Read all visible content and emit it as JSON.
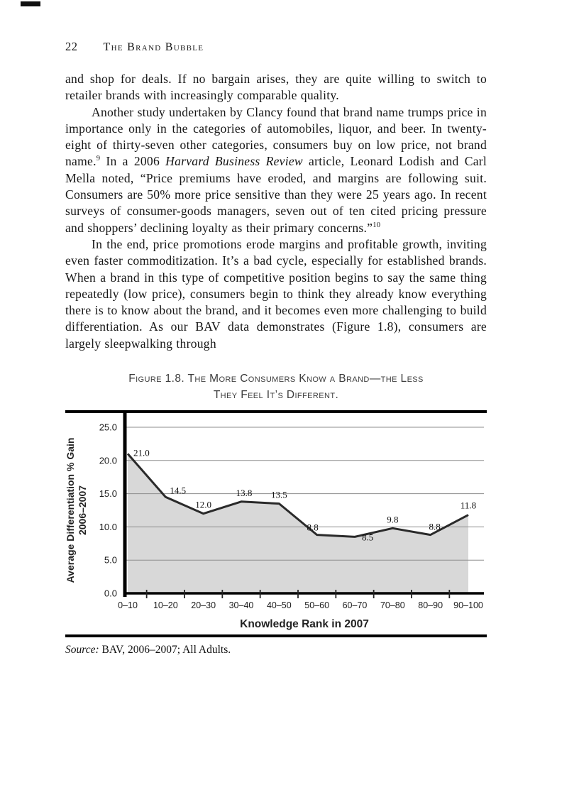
{
  "header": {
    "page_number": "22",
    "running_head": "The Brand Bubble"
  },
  "paragraphs": [
    {
      "segments": [
        {
          "t": "and shop for deals. If no bargain arises, they are quite willing to switch to retailer brands with increasingly comparable quality."
        }
      ]
    },
    {
      "segments": [
        {
          "t": "Another study undertaken by Clancy found that brand name trumps price in importance only in the categories of automobiles, liquor, and beer. In twenty-eight of thirty-seven other categories, consumers buy on low price, not brand name."
        },
        {
          "t": "9",
          "s": "sup"
        },
        {
          "t": " In a 2006 "
        },
        {
          "t": "Harvard Business Review",
          "s": "i"
        },
        {
          "t": " article, Leonard Lodish and Carl Mella noted, “Price premiums have eroded, and margins are following suit. Consumers are 50% more price sensitive than they were 25 years ago. In recent surveys of consumer-goods managers, seven out of ten cited pricing pressure and shoppers’ declining loyalty as their primary concerns.”"
        },
        {
          "t": "10",
          "s": "sup"
        }
      ]
    },
    {
      "segments": [
        {
          "t": "In the end, price promotions erode margins and profitable growth, inviting even faster commoditization. It’s a bad cycle, especially for established brands. When a brand in this type of competitive position begins to say the same thing repeatedly (low price), consumers begin to think they already know everything there is to know about the brand, and it becomes even more challenging to build differentiation. As our BAV data demonstrates (Figure 1.8), consumers are largely sleepwalking through"
        }
      ]
    }
  ],
  "figure": {
    "caption_line1": "Figure 1.8. The More Consumers Know a Brand—the Less",
    "caption_line2": "They Feel It’s Different.",
    "source_label": "Source:",
    "source_text": " BAV, 2006–2007; All Adults."
  },
  "chart_data": {
    "type": "area",
    "title": "Figure 1.8. The More Consumers Know a Brand—the Less They Feel It’s Different.",
    "categories": [
      "0–10",
      "10–20",
      "20–30",
      "30–40",
      "40–50",
      "50–60",
      "60–70",
      "70–80",
      "80–90",
      "90–100"
    ],
    "values": [
      21.0,
      14.5,
      12.0,
      13.8,
      13.5,
      8.8,
      8.5,
      9.8,
      8.8,
      11.8
    ],
    "value_labels": [
      "21.0",
      "14.5",
      "12.0",
      "13.8",
      "13.5",
      "8.8",
      "8.5",
      "9.8",
      "8.8",
      "11.8"
    ],
    "xlabel": "Knowledge Rank in 2007",
    "ylabel": "Average Differentiation % Gain",
    "ylabel_line2": "2006–2007",
    "yticks": [
      0,
      5,
      10,
      15,
      20,
      25
    ],
    "ylim": [
      0,
      25
    ],
    "grid": "horizontal",
    "legend": "none",
    "fill_color": "#d8d8d8",
    "line_color": "#2a2a2a"
  }
}
